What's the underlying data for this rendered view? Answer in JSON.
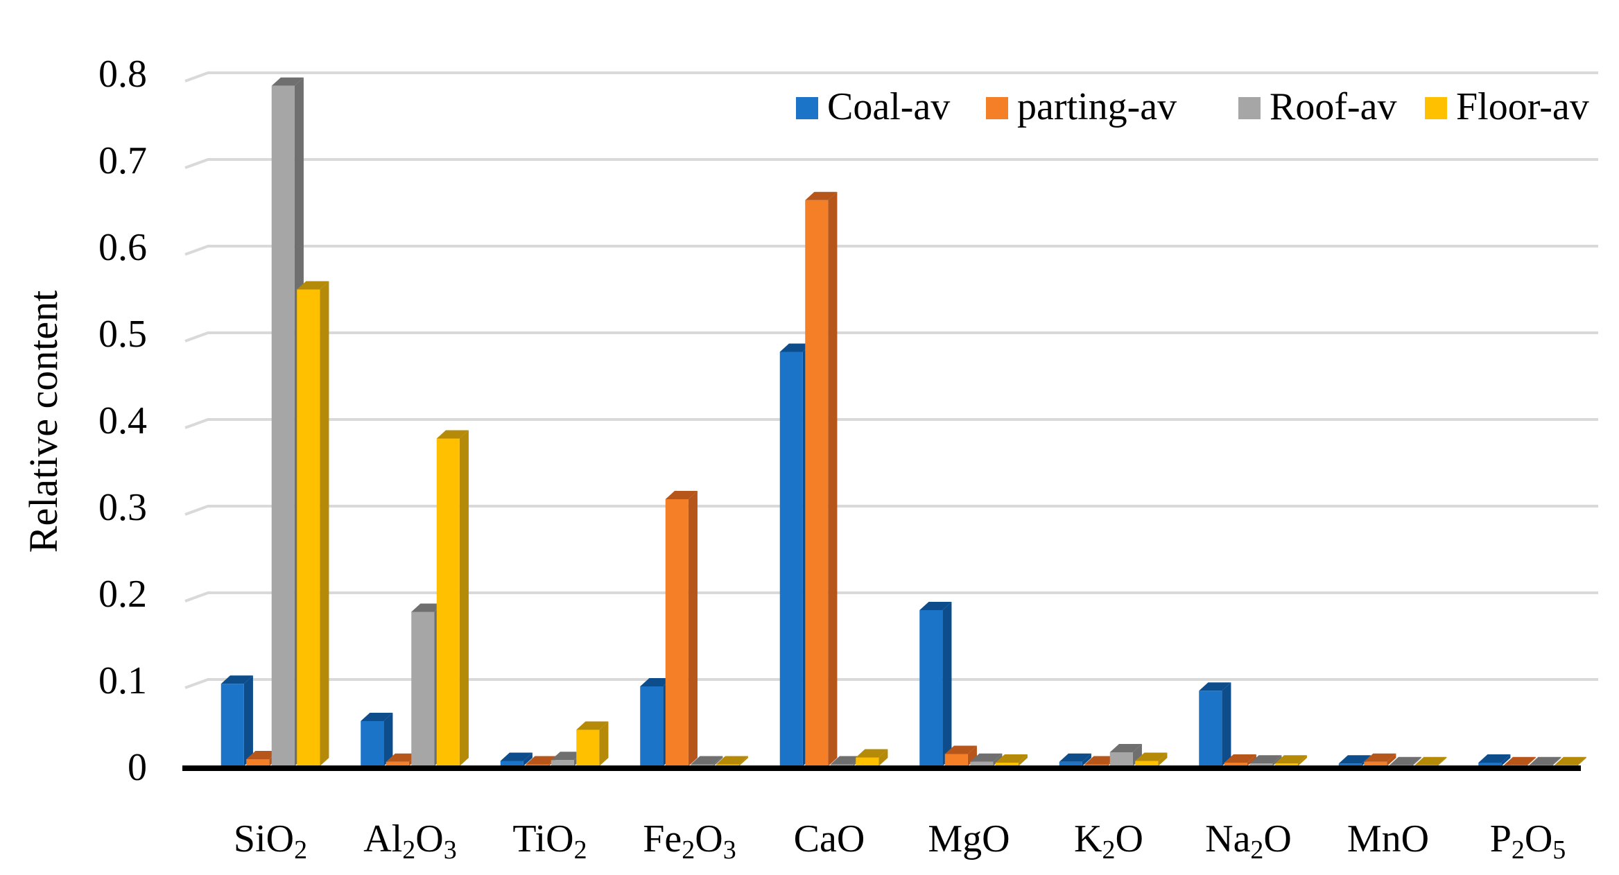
{
  "chart_data": {
    "type": "bar",
    "style": "3d-clustered-column",
    "title": "",
    "xlabel": "",
    "ylabel": "Relative content",
    "ylim": [
      0,
      0.8
    ],
    "yticks": [
      {
        "value": 0,
        "label": "0"
      },
      {
        "value": 0.1,
        "label": "0.1"
      },
      {
        "value": 0.2,
        "label": "0.2"
      },
      {
        "value": 0.3,
        "label": "0.3"
      },
      {
        "value": 0.4,
        "label": "0.4"
      },
      {
        "value": 0.5,
        "label": "0.5"
      },
      {
        "value": 0.6,
        "label": "0.6"
      },
      {
        "value": 0.7,
        "label": "0.7"
      },
      {
        "value": 0.8,
        "label": "0.8"
      }
    ],
    "grid": true,
    "legend_position": "top-right",
    "categories": [
      {
        "label": "SiO2",
        "parts": [
          {
            "t": "SiO"
          },
          {
            "t": "2",
            "sub": true
          }
        ]
      },
      {
        "label": "Al2O3",
        "parts": [
          {
            "t": "Al"
          },
          {
            "t": "2",
            "sub": true
          },
          {
            "t": "O"
          },
          {
            "t": "3",
            "sub": true
          }
        ]
      },
      {
        "label": "TiO2",
        "parts": [
          {
            "t": "TiO"
          },
          {
            "t": "2",
            "sub": true
          }
        ]
      },
      {
        "label": "Fe2O3",
        "parts": [
          {
            "t": "Fe"
          },
          {
            "t": "2",
            "sub": true
          },
          {
            "t": "O"
          },
          {
            "t": "3",
            "sub": true
          }
        ]
      },
      {
        "label": "CaO",
        "parts": [
          {
            "t": "CaO"
          }
        ]
      },
      {
        "label": "MgO",
        "parts": [
          {
            "t": "MgO"
          }
        ]
      },
      {
        "label": "K2O",
        "parts": [
          {
            "t": "K"
          },
          {
            "t": "2",
            "sub": true
          },
          {
            "t": "O"
          }
        ]
      },
      {
        "label": "Na2O",
        "parts": [
          {
            "t": "Na"
          },
          {
            "t": "2",
            "sub": true
          },
          {
            "t": "O"
          }
        ]
      },
      {
        "label": "MnO",
        "parts": [
          {
            "t": "MnO"
          }
        ]
      },
      {
        "label": "P2O5",
        "parts": [
          {
            "t": "P"
          },
          {
            "t": "2",
            "sub": true
          },
          {
            "t": "O"
          },
          {
            "t": "5",
            "sub": true
          }
        ]
      }
    ],
    "series": [
      {
        "name": "Coal-av",
        "color": "#1C74C9",
        "side_color": "#0D4D8C",
        "values": [
          0.095,
          0.052,
          0.006,
          0.092,
          0.478,
          0.18,
          0.005,
          0.087,
          0.003,
          0.004
        ]
      },
      {
        "name": "parting-av",
        "color": "#F57F27",
        "side_color": "#B6561A",
        "values": [
          0.008,
          0.005,
          0.002,
          0.308,
          0.653,
          0.014,
          0.002,
          0.004,
          0.005,
          0.001
        ]
      },
      {
        "name": "Roof-av",
        "color": "#A6A6A6",
        "side_color": "#6F6F6F",
        "values": [
          0.785,
          0.178,
          0.007,
          0.002,
          0.002,
          0.005,
          0.016,
          0.003,
          0.001,
          0.001
        ]
      },
      {
        "name": "Floor-av",
        "color": "#FFC000",
        "side_color": "#B58A08",
        "values": [
          0.55,
          0.378,
          0.042,
          0.002,
          0.01,
          0.004,
          0.006,
          0.003,
          0.001,
          0.001
        ]
      }
    ]
  }
}
